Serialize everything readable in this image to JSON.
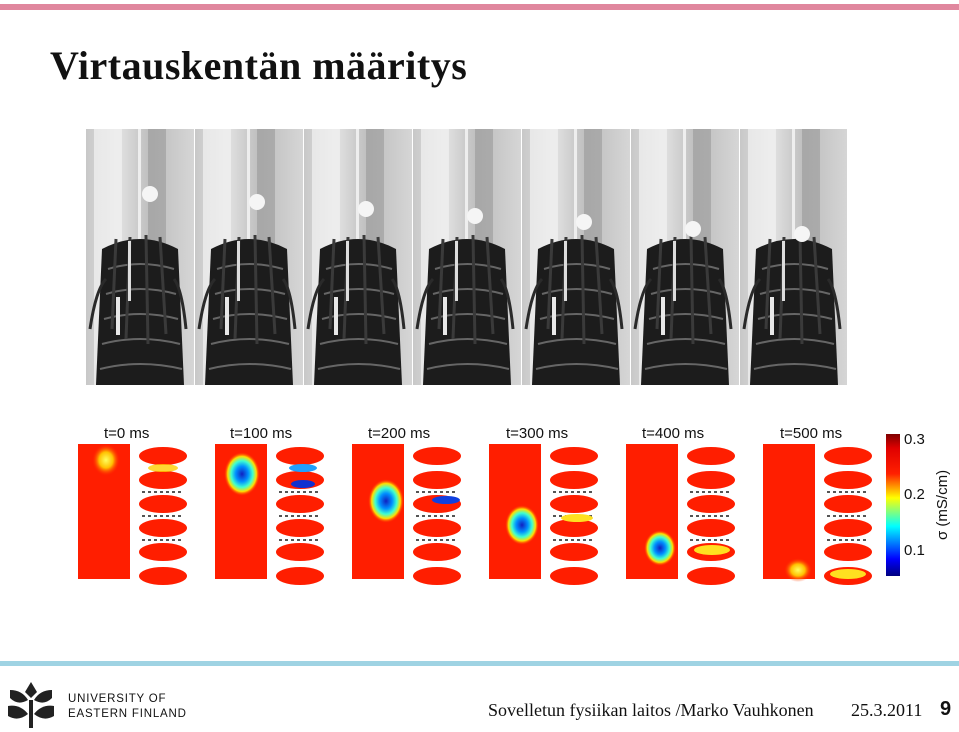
{
  "slide": {
    "title": "Virtauskentän määritys",
    "accent_top": "#e0879e",
    "accent_bottom": "#9fd3e3"
  },
  "figure": {
    "frame_count": 7,
    "time_labels": [
      "t=0 ms",
      "t=100 ms",
      "t=200 ms",
      "t=300 ms",
      "t=400 ms",
      "t=500 ms"
    ],
    "colorbar": {
      "ticks": [
        "0.3",
        "0.2",
        "0.1"
      ],
      "label": "σ (mS/cm)"
    }
  },
  "footer": {
    "university_line1": "UNIVERSITY OF",
    "university_line2": "EASTERN FINLAND",
    "source": "Sovelletun fysiikan laitos /Marko Vauhkonen",
    "date": "25.3.2011",
    "page": "9"
  }
}
